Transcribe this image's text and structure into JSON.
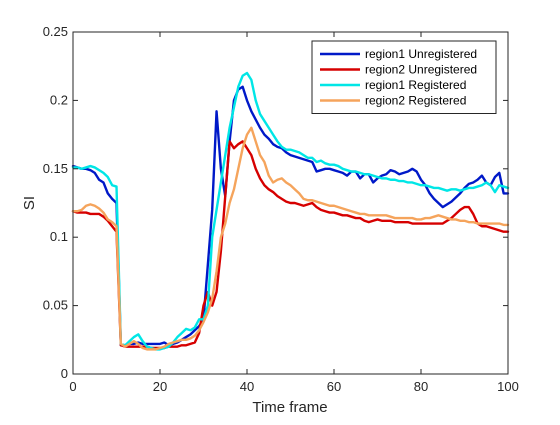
{
  "chart_data": {
    "type": "line",
    "xlabel": "Time frame",
    "ylabel": "SI",
    "xlim": [
      0,
      100
    ],
    "ylim": [
      0,
      0.25
    ],
    "xticks": [
      0,
      20,
      40,
      60,
      80,
      100
    ],
    "xtick_labels": [
      "0",
      "20",
      "40",
      "60",
      "80",
      "100"
    ],
    "yticks": [
      0,
      0.05,
      0.1,
      0.15,
      0.2,
      0.25
    ],
    "ytick_labels": [
      "0",
      "0.05",
      "0.1",
      "0.15",
      "0.2",
      "0.25"
    ],
    "grid": false,
    "legend_position": "top-right",
    "series": [
      {
        "name": "region1 Unregistered",
        "color": "#0019c8",
        "x": [
          0,
          1,
          2,
          3,
          4,
          5,
          6,
          7,
          8,
          9,
          10,
          11,
          12,
          13,
          14,
          15,
          16,
          17,
          18,
          19,
          20,
          21,
          22,
          23,
          24,
          25,
          26,
          27,
          28,
          29,
          30,
          31,
          32,
          33,
          34,
          35,
          36,
          37,
          38,
          39,
          40,
          41,
          42,
          43,
          44,
          45,
          46,
          47,
          48,
          49,
          50,
          51,
          52,
          53,
          54,
          55,
          56,
          57,
          58,
          59,
          60,
          61,
          62,
          63,
          64,
          65,
          66,
          67,
          68,
          69,
          70,
          71,
          72,
          73,
          74,
          75,
          76,
          77,
          78,
          79,
          80,
          81,
          82,
          83,
          84,
          85,
          86,
          87,
          88,
          89,
          90,
          91,
          92,
          93,
          94,
          95,
          96,
          97,
          98,
          99,
          100
        ],
        "values": [
          0.152,
          0.151,
          0.15,
          0.15,
          0.149,
          0.147,
          0.142,
          0.14,
          0.132,
          0.128,
          0.125,
          0.021,
          0.021,
          0.022,
          0.022,
          0.023,
          0.022,
          0.022,
          0.022,
          0.022,
          0.022,
          0.023,
          0.021,
          0.022,
          0.023,
          0.025,
          0.027,
          0.029,
          0.032,
          0.035,
          0.04,
          0.08,
          0.12,
          0.192,
          0.15,
          0.13,
          0.17,
          0.2,
          0.208,
          0.21,
          0.2,
          0.192,
          0.186,
          0.18,
          0.175,
          0.172,
          0.168,
          0.166,
          0.165,
          0.162,
          0.16,
          0.159,
          0.158,
          0.157,
          0.156,
          0.155,
          0.148,
          0.149,
          0.15,
          0.15,
          0.149,
          0.148,
          0.147,
          0.145,
          0.148,
          0.148,
          0.143,
          0.146,
          0.146,
          0.14,
          0.143,
          0.145,
          0.146,
          0.149,
          0.148,
          0.146,
          0.147,
          0.148,
          0.15,
          0.148,
          0.142,
          0.138,
          0.132,
          0.128,
          0.125,
          0.122,
          0.124,
          0.126,
          0.129,
          0.132,
          0.136,
          0.139,
          0.14,
          0.142,
          0.145,
          0.14,
          0.138,
          0.144,
          0.147,
          0.132,
          0.132
        ]
      },
      {
        "name": "region2 Unregistered",
        "color": "#d60000",
        "x": [
          0,
          1,
          2,
          3,
          4,
          5,
          6,
          7,
          8,
          9,
          10,
          11,
          12,
          13,
          14,
          15,
          16,
          17,
          18,
          19,
          20,
          21,
          22,
          23,
          24,
          25,
          26,
          27,
          28,
          29,
          30,
          31,
          32,
          33,
          34,
          35,
          36,
          37,
          38,
          39,
          40,
          41,
          42,
          43,
          44,
          45,
          46,
          47,
          48,
          49,
          50,
          51,
          52,
          53,
          54,
          55,
          56,
          57,
          58,
          59,
          60,
          61,
          62,
          63,
          64,
          65,
          66,
          67,
          68,
          69,
          70,
          71,
          72,
          73,
          74,
          75,
          76,
          77,
          78,
          79,
          80,
          81,
          82,
          83,
          84,
          85,
          86,
          87,
          88,
          89,
          90,
          91,
          92,
          93,
          94,
          95,
          96,
          97,
          98,
          99,
          100
        ],
        "values": [
          0.119,
          0.118,
          0.118,
          0.118,
          0.117,
          0.117,
          0.117,
          0.115,
          0.112,
          0.108,
          0.104,
          0.021,
          0.02,
          0.02,
          0.02,
          0.02,
          0.02,
          0.02,
          0.019,
          0.019,
          0.019,
          0.019,
          0.02,
          0.02,
          0.02,
          0.021,
          0.021,
          0.022,
          0.023,
          0.03,
          0.05,
          0.06,
          0.05,
          0.06,
          0.09,
          0.13,
          0.17,
          0.165,
          0.168,
          0.17,
          0.165,
          0.16,
          0.15,
          0.143,
          0.138,
          0.135,
          0.133,
          0.13,
          0.128,
          0.126,
          0.125,
          0.125,
          0.124,
          0.123,
          0.124,
          0.125,
          0.122,
          0.12,
          0.119,
          0.118,
          0.118,
          0.117,
          0.116,
          0.116,
          0.115,
          0.114,
          0.114,
          0.112,
          0.111,
          0.112,
          0.113,
          0.112,
          0.112,
          0.112,
          0.111,
          0.111,
          0.111,
          0.111,
          0.11,
          0.11,
          0.11,
          0.11,
          0.11,
          0.11,
          0.11,
          0.11,
          0.112,
          0.114,
          0.117,
          0.12,
          0.122,
          0.122,
          0.117,
          0.11,
          0.108,
          0.108,
          0.107,
          0.106,
          0.105,
          0.104,
          0.104
        ]
      },
      {
        "name": "region1 Registered",
        "color": "#00e6e6",
        "x": [
          0,
          1,
          2,
          3,
          4,
          5,
          6,
          7,
          8,
          9,
          10,
          11,
          12,
          13,
          14,
          15,
          16,
          17,
          18,
          19,
          20,
          21,
          22,
          23,
          24,
          25,
          26,
          27,
          28,
          29,
          30,
          31,
          32,
          33,
          34,
          35,
          36,
          37,
          38,
          39,
          40,
          41,
          42,
          43,
          44,
          45,
          46,
          47,
          48,
          49,
          50,
          51,
          52,
          53,
          54,
          55,
          56,
          57,
          58,
          59,
          60,
          61,
          62,
          63,
          64,
          65,
          66,
          67,
          68,
          69,
          70,
          71,
          72,
          73,
          74,
          75,
          76,
          77,
          78,
          79,
          80,
          81,
          82,
          83,
          84,
          85,
          86,
          87,
          88,
          89,
          90,
          91,
          92,
          93,
          94,
          95,
          96,
          97,
          98,
          99,
          100
        ],
        "values": [
          0.151,
          0.151,
          0.15,
          0.151,
          0.152,
          0.151,
          0.149,
          0.147,
          0.144,
          0.138,
          0.137,
          0.022,
          0.021,
          0.024,
          0.027,
          0.029,
          0.024,
          0.02,
          0.019,
          0.018,
          0.018,
          0.019,
          0.02,
          0.023,
          0.027,
          0.03,
          0.033,
          0.032,
          0.034,
          0.04,
          0.04,
          0.05,
          0.1,
          0.12,
          0.14,
          0.16,
          0.18,
          0.195,
          0.21,
          0.218,
          0.22,
          0.215,
          0.2,
          0.19,
          0.185,
          0.18,
          0.175,
          0.17,
          0.166,
          0.164,
          0.164,
          0.163,
          0.162,
          0.16,
          0.158,
          0.158,
          0.155,
          0.156,
          0.154,
          0.153,
          0.153,
          0.152,
          0.15,
          0.149,
          0.148,
          0.148,
          0.147,
          0.146,
          0.146,
          0.145,
          0.144,
          0.143,
          0.143,
          0.142,
          0.142,
          0.141,
          0.141,
          0.14,
          0.14,
          0.139,
          0.138,
          0.138,
          0.137,
          0.136,
          0.136,
          0.135,
          0.134,
          0.135,
          0.135,
          0.134,
          0.135,
          0.136,
          0.136,
          0.137,
          0.138,
          0.14,
          0.138,
          0.133,
          0.138,
          0.137,
          0.136
        ]
      },
      {
        "name": "region2 Registered",
        "color": "#f5a45c",
        "x": [
          0,
          1,
          2,
          3,
          4,
          5,
          6,
          7,
          8,
          9,
          10,
          11,
          12,
          13,
          14,
          15,
          16,
          17,
          18,
          19,
          20,
          21,
          22,
          23,
          24,
          25,
          26,
          27,
          28,
          29,
          30,
          31,
          32,
          33,
          34,
          35,
          36,
          37,
          38,
          39,
          40,
          41,
          42,
          43,
          44,
          45,
          46,
          47,
          48,
          49,
          50,
          51,
          52,
          53,
          54,
          55,
          56,
          57,
          58,
          59,
          60,
          61,
          62,
          63,
          64,
          65,
          66,
          67,
          68,
          69,
          70,
          71,
          72,
          73,
          74,
          75,
          76,
          77,
          78,
          79,
          80,
          81,
          82,
          83,
          84,
          85,
          86,
          87,
          88,
          89,
          90,
          91,
          92,
          93,
          94,
          95,
          96,
          97,
          98,
          99,
          100
        ],
        "values": [
          0.119,
          0.119,
          0.12,
          0.123,
          0.124,
          0.123,
          0.121,
          0.118,
          0.113,
          0.111,
          0.108,
          0.022,
          0.02,
          0.022,
          0.024,
          0.022,
          0.019,
          0.018,
          0.018,
          0.018,
          0.019,
          0.02,
          0.022,
          0.023,
          0.024,
          0.025,
          0.025,
          0.026,
          0.028,
          0.032,
          0.038,
          0.045,
          0.055,
          0.075,
          0.1,
          0.11,
          0.125,
          0.135,
          0.15,
          0.165,
          0.175,
          0.18,
          0.17,
          0.16,
          0.155,
          0.145,
          0.14,
          0.142,
          0.143,
          0.14,
          0.138,
          0.135,
          0.132,
          0.128,
          0.127,
          0.127,
          0.126,
          0.125,
          0.124,
          0.123,
          0.123,
          0.122,
          0.121,
          0.12,
          0.119,
          0.118,
          0.117,
          0.117,
          0.116,
          0.116,
          0.116,
          0.116,
          0.116,
          0.115,
          0.114,
          0.114,
          0.114,
          0.114,
          0.114,
          0.113,
          0.113,
          0.114,
          0.114,
          0.115,
          0.116,
          0.115,
          0.114,
          0.113,
          0.113,
          0.112,
          0.112,
          0.111,
          0.111,
          0.11,
          0.11,
          0.11,
          0.11,
          0.11,
          0.11,
          0.109,
          0.109
        ]
      }
    ]
  }
}
